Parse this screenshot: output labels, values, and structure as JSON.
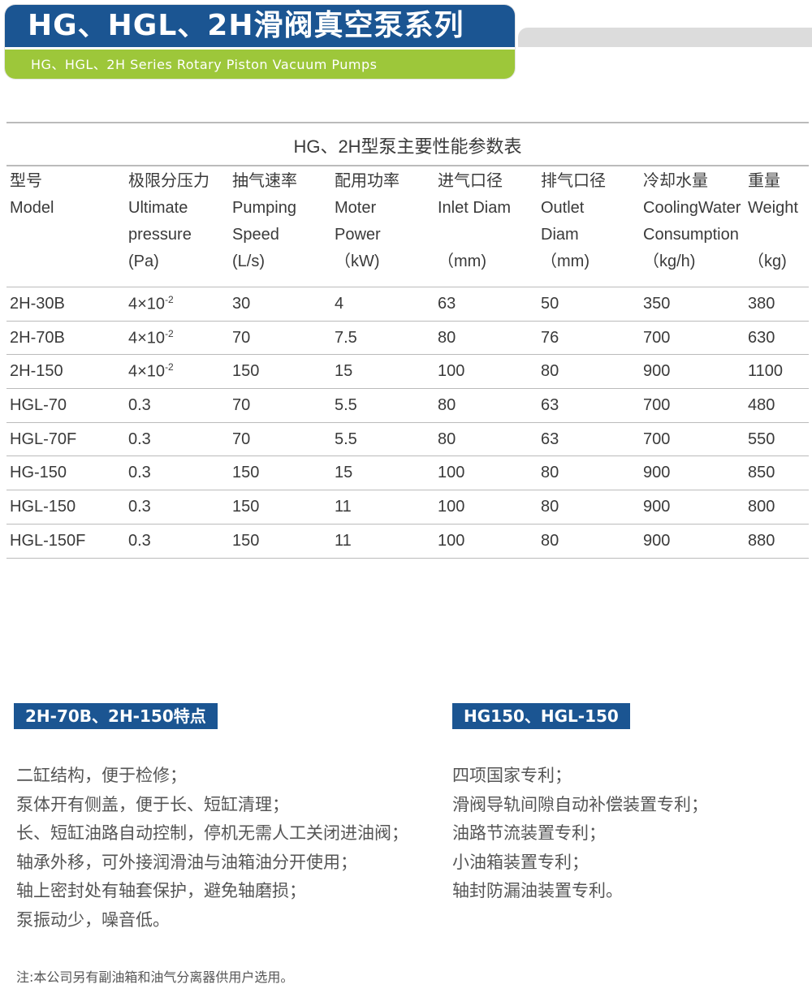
{
  "header": {
    "title": "HG、HGL、2H滑阀真空泵系列",
    "subtitle": "HG、HGL、2H Series Rotary Piston Vacuum Pumps"
  },
  "colors": {
    "blue": "#1b5592",
    "green": "#9dc73a",
    "grey": "#dcdcdc"
  },
  "table": {
    "caption": "HG、2H型泵主要性能参数表",
    "columns": [
      [
        "型号",
        "Model",
        "",
        ""
      ],
      [
        "极限分压力",
        "Ultimate",
        "pressure",
        "(Pa)"
      ],
      [
        "抽气速率",
        "Pumping",
        "Speed",
        "(L/s)"
      ],
      [
        "配用功率",
        "Moter",
        "Power",
        "（kW)"
      ],
      [
        "进气口径",
        "Inlet Diam",
        "",
        "（mm)"
      ],
      [
        "排气口径",
        "Outlet",
        "Diam",
        "（mm)"
      ],
      [
        "冷却水量",
        "CoolingWater",
        "Consumption",
        "（kg/h)"
      ],
      [
        "重量",
        "Weight",
        "",
        "（kg)"
      ]
    ],
    "rows": [
      {
        "model": "2H-30B",
        "pressure": "4×10",
        "exp": "-2",
        "speed": "30",
        "power": "4",
        "inlet": "63",
        "outlet": "50",
        "water": "350",
        "weight": "380"
      },
      {
        "model": "2H-70B",
        "pressure": "4×10",
        "exp": "-2",
        "speed": "70",
        "power": "7.5",
        "inlet": "80",
        "outlet": "76",
        "water": "700",
        "weight": "630"
      },
      {
        "model": "2H-150",
        "pressure": "4×10",
        "exp": "-2",
        "speed": "150",
        "power": "15",
        "inlet": "100",
        "outlet": "80",
        "water": "900",
        "weight": "1100"
      },
      {
        "model": "HGL-70",
        "pressure": "0.3",
        "speed": "70",
        "power": "5.5",
        "inlet": "80",
        "outlet": "63",
        "water": "700",
        "weight": "480"
      },
      {
        "model": "HGL-70F",
        "pressure": "0.3",
        "speed": "70",
        "power": "5.5",
        "inlet": "80",
        "outlet": "63",
        "water": "700",
        "weight": "550"
      },
      {
        "model": "HG-150",
        "pressure": "0.3",
        "speed": "150",
        "power": "15",
        "inlet": "100",
        "outlet": "80",
        "water": "900",
        "weight": "850"
      },
      {
        "model": "HGL-150",
        "pressure": "0.3",
        "speed": "150",
        "power": "11",
        "inlet": "100",
        "outlet": "80",
        "water": "900",
        "weight": "800"
      },
      {
        "model": "HGL-150F",
        "pressure": "0.3",
        "speed": "150",
        "power": "11",
        "inlet": "100",
        "outlet": "80",
        "water": "900",
        "weight": "880"
      }
    ]
  },
  "features_left": {
    "title": "2H-70B、2H-150特点",
    "items": [
      "二缸结构，便于检修；",
      "泵体开有侧盖，便于长、短缸清理；",
      "长、短缸油路自动控制，停机无需人工关闭进油阀；",
      "轴承外移，可外接润滑油与油箱油分开使用；",
      "轴上密封处有轴套保护，避免轴磨损；",
      "泵振动少，噪音低。"
    ]
  },
  "features_right": {
    "title": "HG150、HGL-150",
    "items": [
      "四项国家专利；",
      "滑阀导轨间隙自动补偿装置专利；",
      "油路节流装置专利；",
      "小油箱装置专利；",
      "轴封防漏油装置专利。"
    ]
  },
  "note": "注:本公司另有副油箱和油气分离器供用户选用。"
}
